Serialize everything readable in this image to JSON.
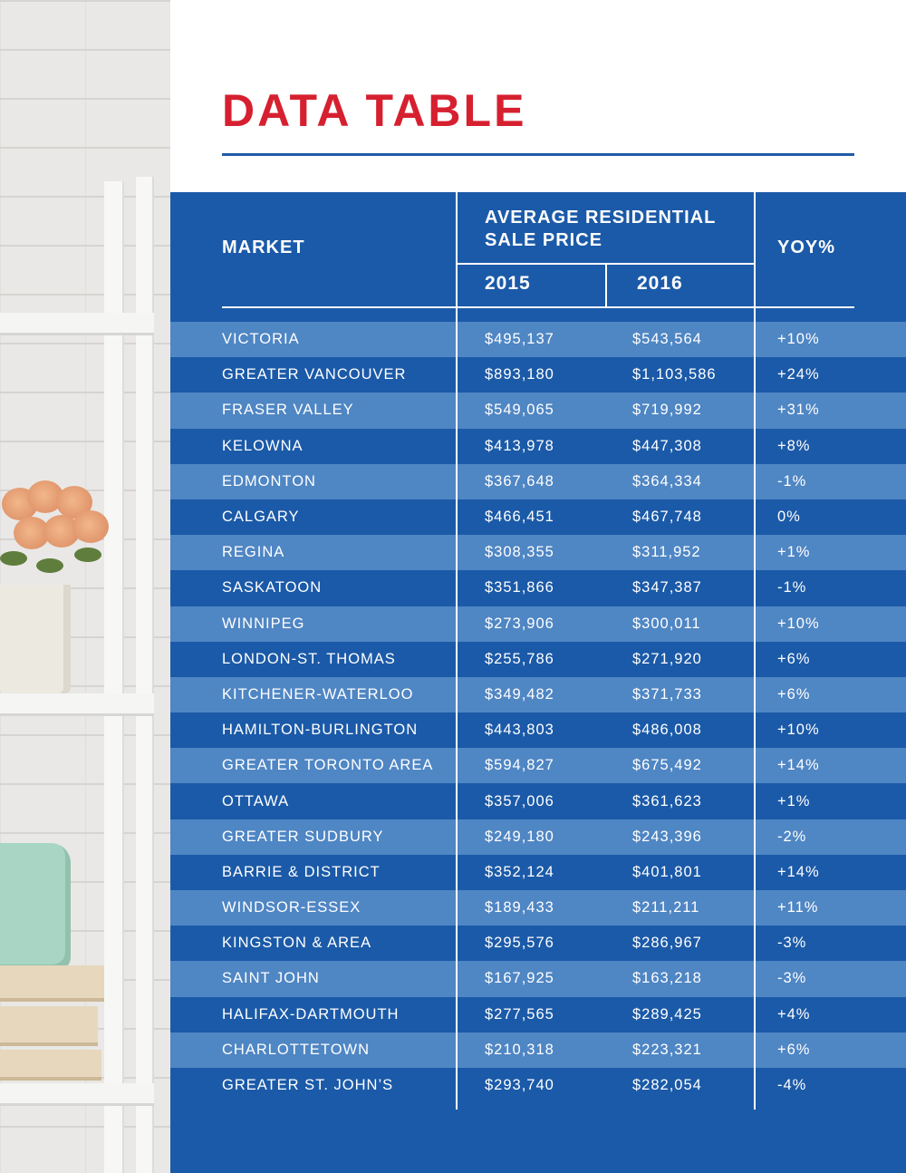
{
  "header": {
    "title": "DATA TABLE"
  },
  "table": {
    "col_market": "MARKET",
    "col_avg_price": "AVERAGE RESIDENTIAL SALE PRICE",
    "col_2015": "2015",
    "col_2016": "2016",
    "col_yoy": "YOY%",
    "rows": [
      {
        "market": "VICTORIA",
        "y2015": "$495,137",
        "y2016": "$543,564",
        "yoy": "+10%"
      },
      {
        "market": "GREATER VANCOUVER",
        "y2015": "$893,180",
        "y2016": "$1,103,586",
        "yoy": "+24%"
      },
      {
        "market": "FRASER VALLEY",
        "y2015": "$549,065",
        "y2016": "$719,992",
        "yoy": "+31%"
      },
      {
        "market": "KELOWNA",
        "y2015": "$413,978",
        "y2016": "$447,308",
        "yoy": "+8%"
      },
      {
        "market": "EDMONTON",
        "y2015": "$367,648",
        "y2016": "$364,334",
        "yoy": "-1%"
      },
      {
        "market": "CALGARY",
        "y2015": "$466,451",
        "y2016": "$467,748",
        "yoy": "0%"
      },
      {
        "market": "REGINA",
        "y2015": "$308,355",
        "y2016": "$311,952",
        "yoy": "+1%"
      },
      {
        "market": "SASKATOON",
        "y2015": "$351,866",
        "y2016": "$347,387",
        "yoy": "-1%"
      },
      {
        "market": "WINNIPEG",
        "y2015": "$273,906",
        "y2016": "$300,011",
        "yoy": "+10%"
      },
      {
        "market": "LONDON-ST. THOMAS",
        "y2015": "$255,786",
        "y2016": "$271,920",
        "yoy": "+6%"
      },
      {
        "market": "KITCHENER-WATERLOO",
        "y2015": "$349,482",
        "y2016": "$371,733",
        "yoy": "+6%"
      },
      {
        "market": "HAMILTON-BURLINGTON",
        "y2015": "$443,803",
        "y2016": "$486,008",
        "yoy": "+10%"
      },
      {
        "market": "GREATER TORONTO AREA",
        "y2015": "$594,827",
        "y2016": "$675,492",
        "yoy": "+14%"
      },
      {
        "market": "OTTAWA",
        "y2015": "$357,006",
        "y2016": "$361,623",
        "yoy": "+1%"
      },
      {
        "market": "GREATER SUDBURY",
        "y2015": "$249,180",
        "y2016": "$243,396",
        "yoy": "-2%"
      },
      {
        "market": "BARRIE & DISTRICT",
        "y2015": "$352,124",
        "y2016": "$401,801",
        "yoy": "+14%"
      },
      {
        "market": "WINDSOR-ESSEX",
        "y2015": "$189,433",
        "y2016": "$211,211",
        "yoy": "+11%"
      },
      {
        "market": "KINGSTON & AREA",
        "y2015": "$295,576",
        "y2016": "$286,967",
        "yoy": "-3%"
      },
      {
        "market": "SAINT JOHN",
        "y2015": "$167,925",
        "y2016": "$163,218",
        "yoy": "-3%"
      },
      {
        "market": "HALIFAX-DARTMOUTH",
        "y2015": "$277,565",
        "y2016": "$289,425",
        "yoy": "+4%"
      },
      {
        "market": "CHARLOTTETOWN",
        "y2015": "$210,318",
        "y2016": "$223,321",
        "yoy": "+6%"
      },
      {
        "market": "GREATER ST. JOHN’S",
        "y2015": "$293,740",
        "y2016": "$282,054",
        "yoy": "-4%"
      }
    ]
  },
  "colors": {
    "title_red": "#d62030",
    "panel_blue": "#1b5aa8",
    "stripe_blue": "#4f86c4"
  }
}
